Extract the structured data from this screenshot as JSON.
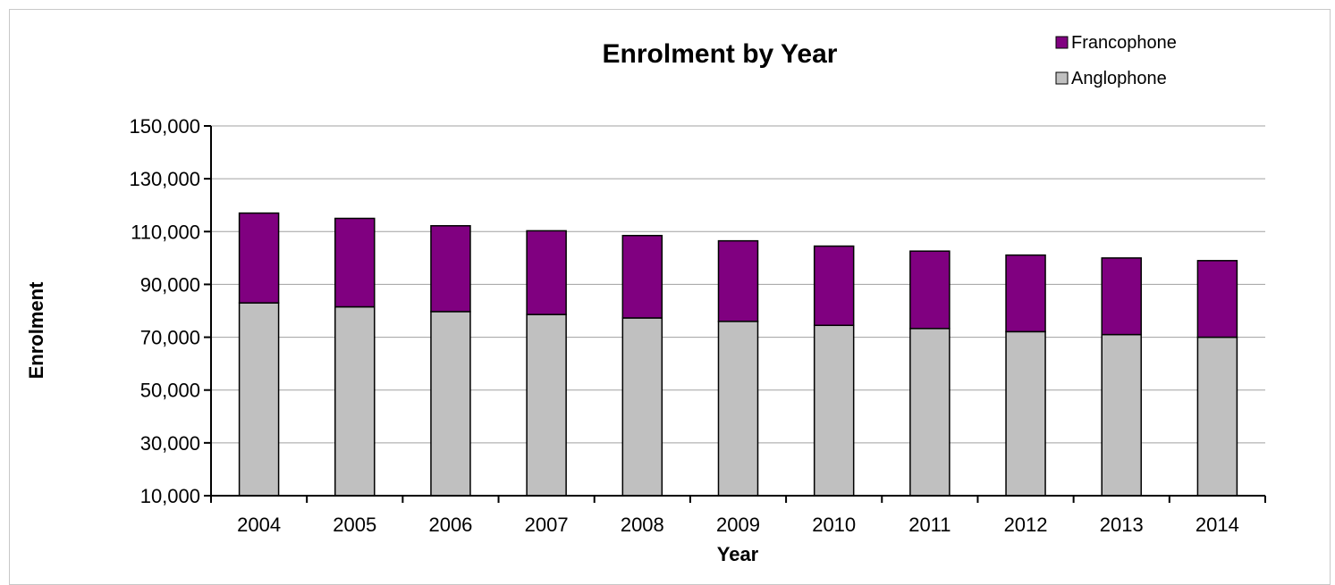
{
  "chart_data": {
    "type": "bar",
    "stacked": true,
    "title": "Enrolment by Year",
    "xlabel": "Year",
    "ylabel": "Enrolment",
    "ylim": [
      10000,
      150000
    ],
    "yticks": [
      10000,
      30000,
      50000,
      70000,
      90000,
      110000,
      130000,
      150000
    ],
    "ytick_labels": [
      "10,000",
      "30,000",
      "50,000",
      "70,000",
      "90,000",
      "110,000",
      "130,000",
      "150,000"
    ],
    "grid": true,
    "legend_position": "top-right",
    "categories": [
      "2004",
      "2005",
      "2006",
      "2007",
      "2008",
      "2009",
      "2010",
      "2011",
      "2012",
      "2013",
      "2014"
    ],
    "series": [
      {
        "name": "Anglophone",
        "color": "#c0c0c0",
        "values": [
          83000,
          81500,
          79700,
          78600,
          77300,
          76000,
          74500,
          73300,
          72100,
          71000,
          70000
        ]
      },
      {
        "name": "Francophone",
        "color": "#800080",
        "values": [
          34000,
          33500,
          32500,
          31700,
          31200,
          30500,
          30000,
          29300,
          29000,
          29000,
          29000
        ]
      }
    ],
    "legend_order": [
      "Francophone",
      "Anglophone"
    ]
  }
}
